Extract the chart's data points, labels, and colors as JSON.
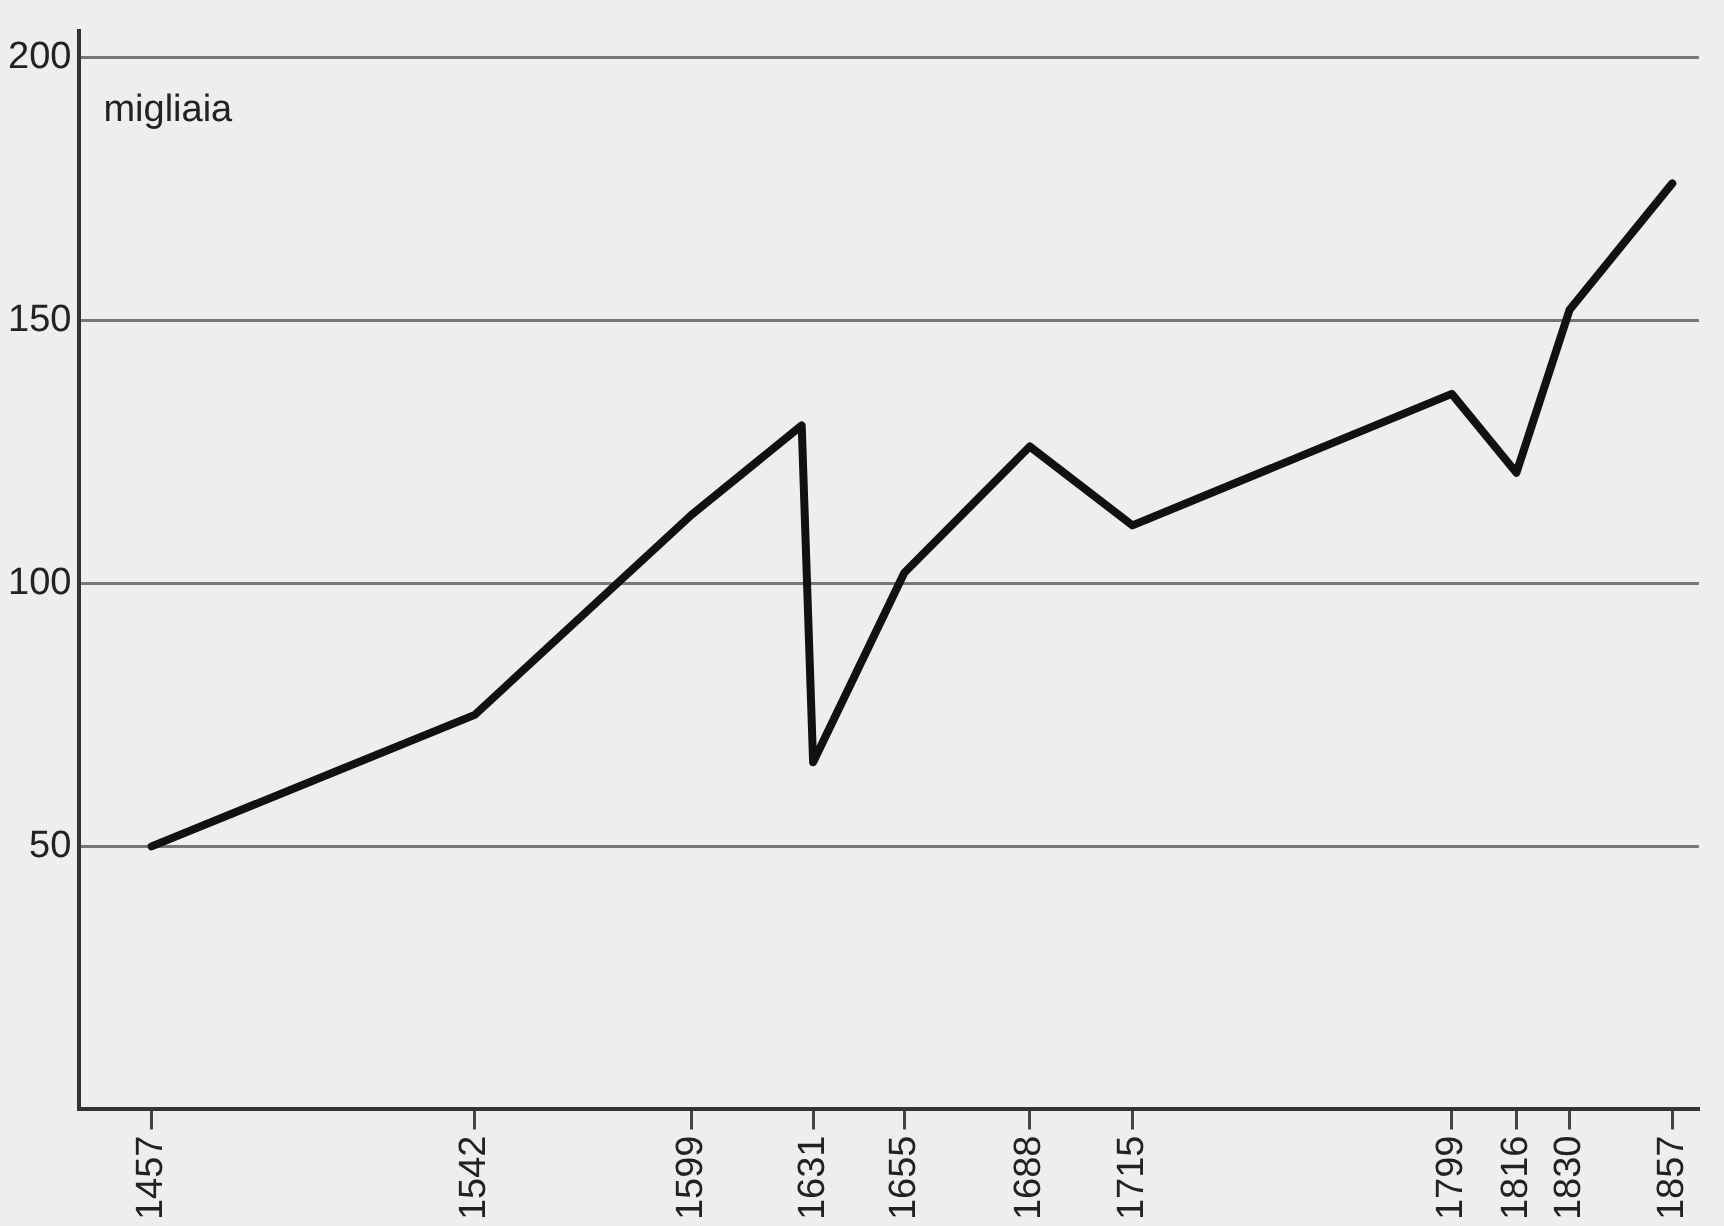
{
  "chart_data": {
    "type": "line",
    "ylabel": "migliaia",
    "x": [
      1457,
      1542,
      1599,
      1628,
      1631,
      1655,
      1688,
      1715,
      1799,
      1816,
      1830,
      1857
    ],
    "series": [
      {
        "color": "#111111",
        "values": [
          50,
          75,
          113,
          130,
          66,
          102,
          126,
          111,
          136,
          121,
          152,
          176
        ]
      }
    ],
    "xlim": [
      1438,
      1864
    ],
    "xticks": [
      1457,
      1542,
      1599,
      1631,
      1655,
      1688,
      1715,
      1799,
      1816,
      1830,
      1857
    ],
    "ylim": [
      0,
      205
    ],
    "yticks": [
      50,
      100,
      150,
      200
    ],
    "grid": "y",
    "legend": false,
    "marker": "none",
    "line_style": "solid"
  }
}
